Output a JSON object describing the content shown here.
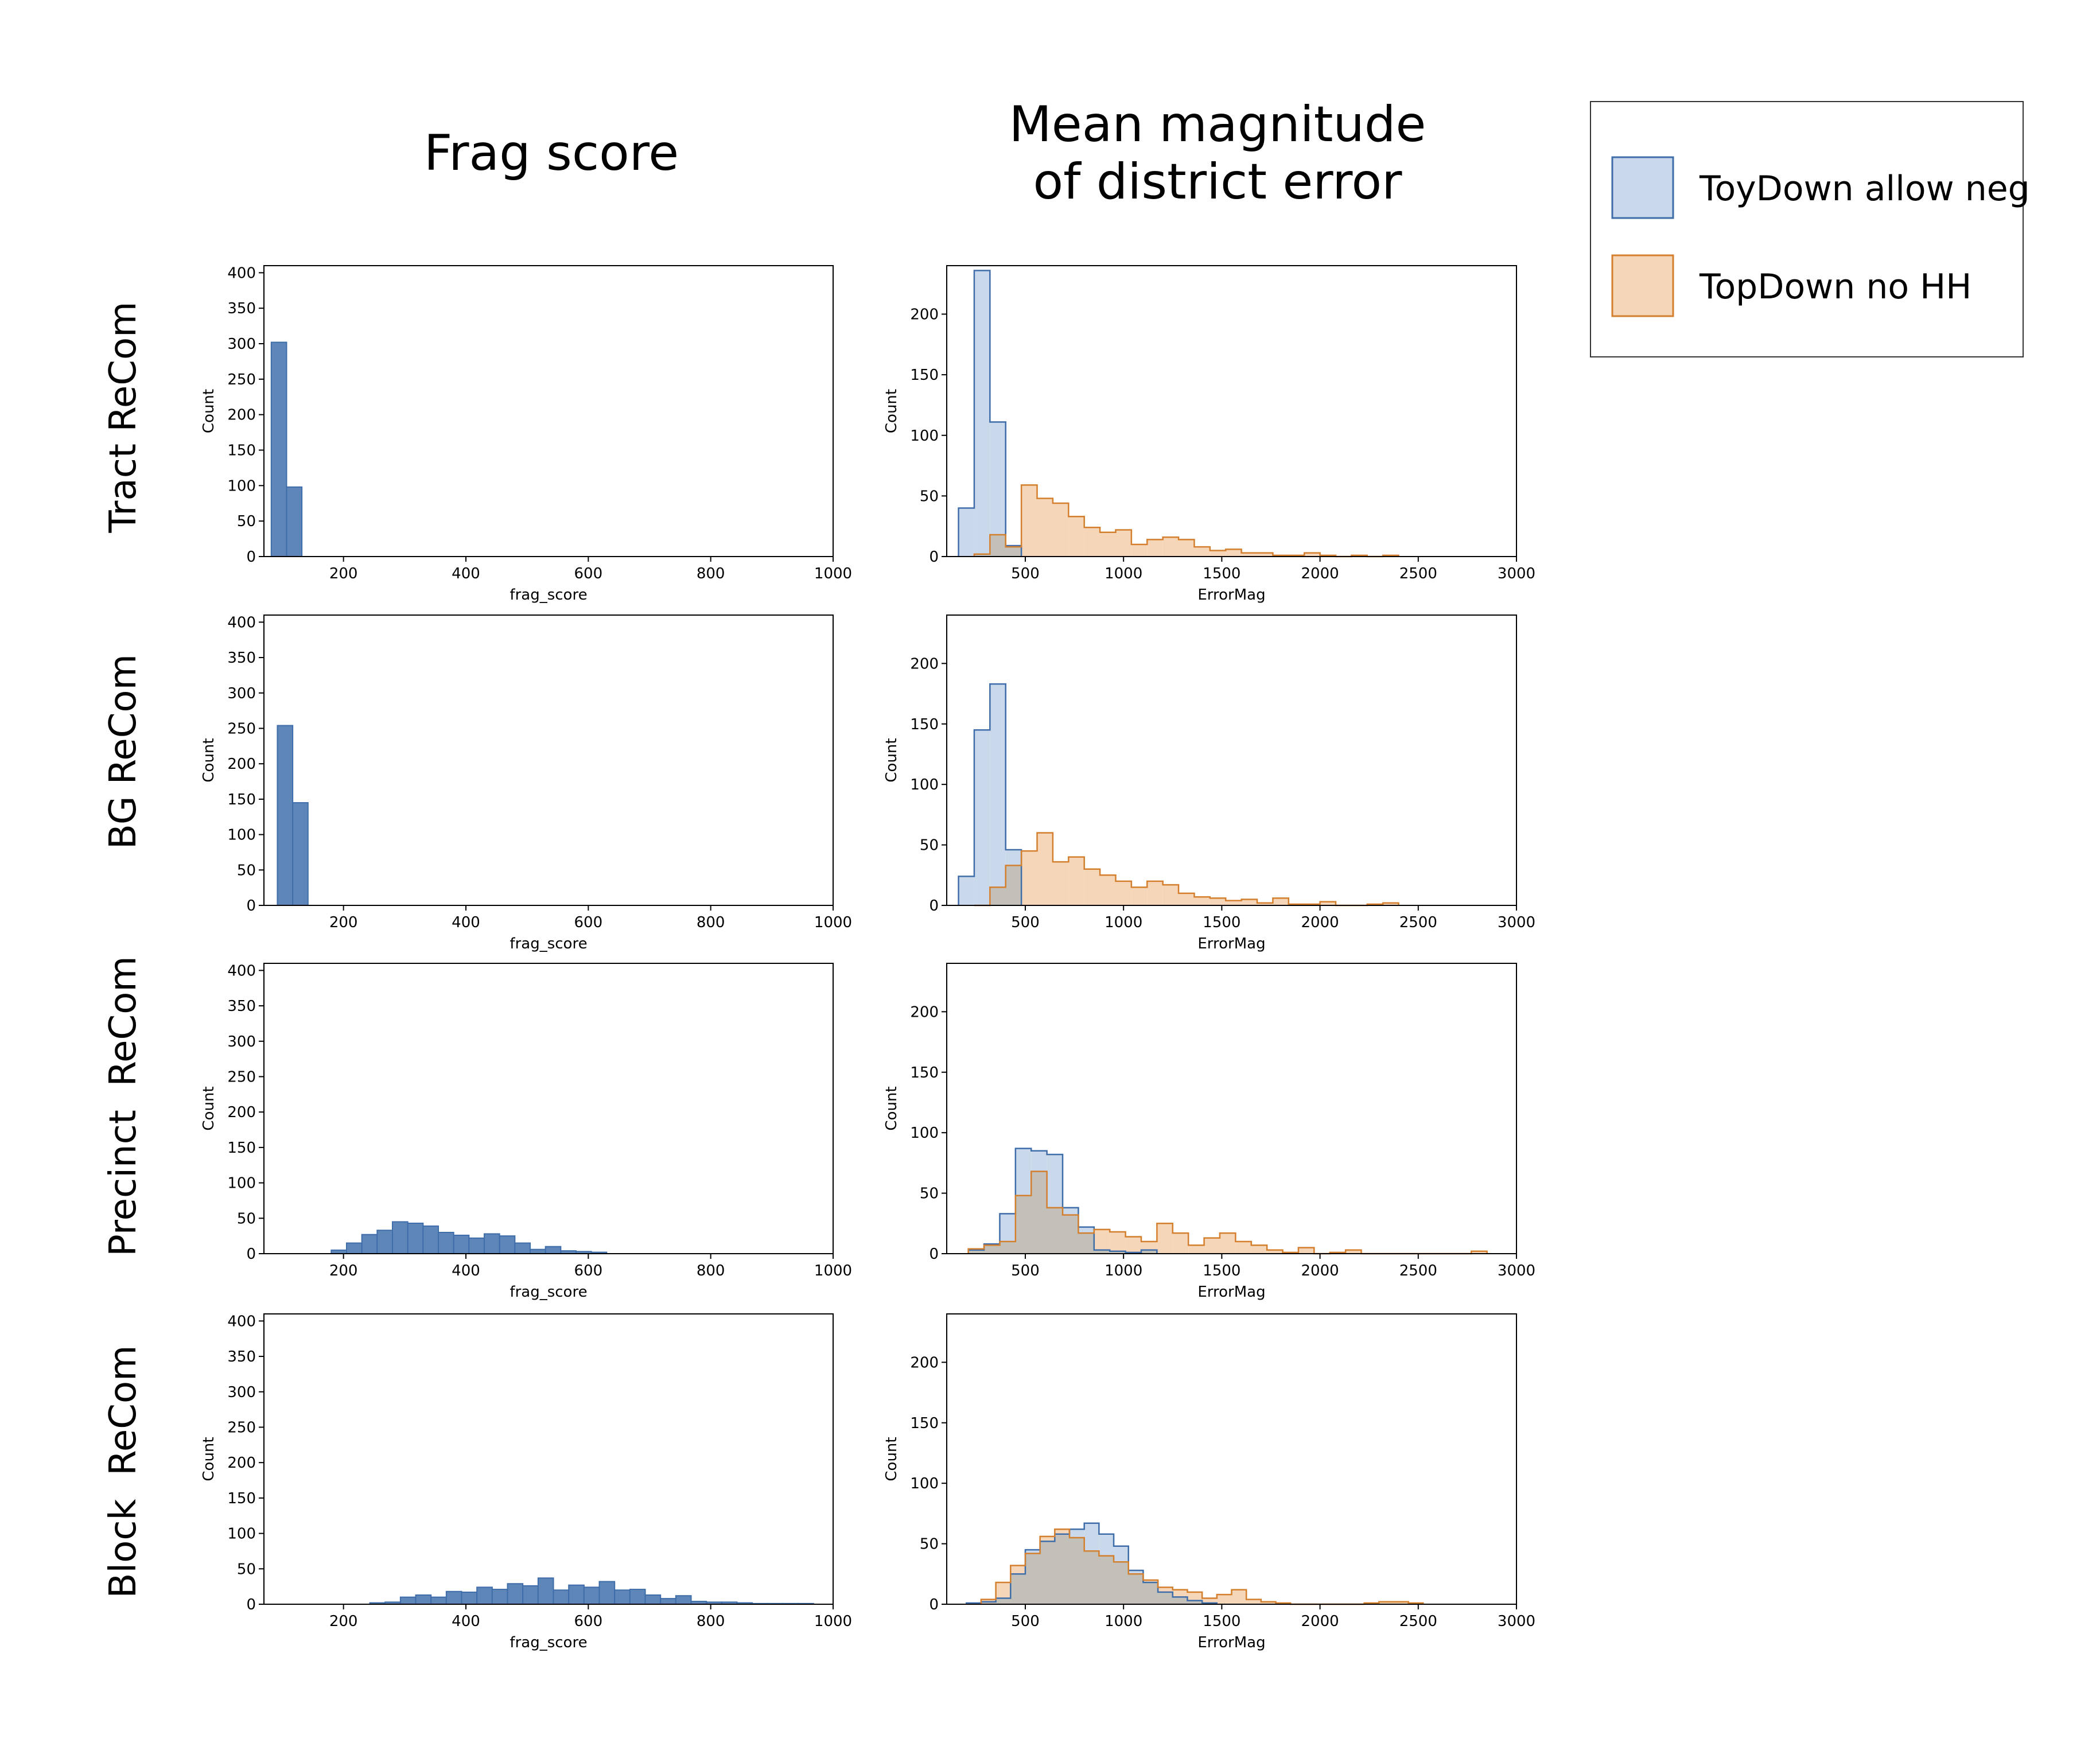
{
  "column_titles": {
    "frag": "Frag score",
    "err_line1": "Mean magnitude",
    "err_line2": "of district error"
  },
  "row_titles": [
    "Tract ReCom",
    "BG ReCom",
    "Precinct  ReCom",
    "Block  ReCom"
  ],
  "legend": {
    "items": [
      {
        "label": "ToyDown allow neg",
        "fill": "#c9d8ea",
        "stroke": "#3e6daa"
      },
      {
        "label": "TopDown no HH",
        "fill": "#f6d6b8",
        "stroke": "#d47f2e"
      }
    ]
  },
  "colors": {
    "frag_fill": "#5f86b8",
    "frag_stroke": "#3e6daa",
    "blue_fill": "#c9d8ea",
    "blue_stroke": "#3e6daa",
    "orange_fill": "#f6d6b8",
    "orange_stroke": "#d47f2e",
    "overlap_fill": "#c2c0b8"
  },
  "chart_data": [
    {
      "type": "bar",
      "row": 0,
      "panel": "frag",
      "xlabel": "frag_score",
      "ylabel": "Count",
      "xlim": [
        70,
        1000
      ],
      "ylim": [
        0,
        410
      ],
      "xticks": [
        200,
        400,
        600,
        800,
        1000
      ],
      "yticks": [
        0,
        50,
        100,
        150,
        200,
        250,
        300,
        350,
        400
      ],
      "bins": [
        [
          82,
          107,
          302
        ],
        [
          107,
          132,
          98
        ]
      ]
    },
    {
      "type": "bar",
      "row": 0,
      "panel": "err",
      "xlabel": "ErrorMag",
      "ylabel": "Count",
      "xlim": [
        100,
        3000
      ],
      "ylim": [
        0,
        240
      ],
      "xticks": [
        500,
        1000,
        1500,
        2000,
        2500,
        3000
      ],
      "yticks": [
        0,
        50,
        100,
        150,
        200
      ],
      "series": [
        {
          "name": "ToyDown allow neg",
          "start": 160,
          "width": 80,
          "counts": [
            40,
            236,
            111,
            9
          ]
        },
        {
          "name": "TopDown no HH",
          "start": 240,
          "width": 80,
          "counts": [
            2,
            18,
            8,
            59,
            48,
            44,
            33,
            24,
            20,
            22,
            10,
            14,
            16,
            14,
            8,
            5,
            6,
            3,
            3,
            1,
            1,
            3,
            1,
            0,
            1,
            0,
            1
          ]
        }
      ]
    },
    {
      "type": "bar",
      "row": 1,
      "panel": "frag",
      "xlabel": "frag_score",
      "ylabel": "Count",
      "xlim": [
        70,
        1000
      ],
      "ylim": [
        0,
        410
      ],
      "xticks": [
        200,
        400,
        600,
        800,
        1000
      ],
      "yticks": [
        0,
        50,
        100,
        150,
        200,
        250,
        300,
        350,
        400
      ],
      "bins": [
        [
          92,
          117,
          254
        ],
        [
          117,
          142,
          145
        ]
      ]
    },
    {
      "type": "bar",
      "row": 1,
      "panel": "err",
      "xlabel": "ErrorMag",
      "ylabel": "Count",
      "xlim": [
        100,
        3000
      ],
      "ylim": [
        0,
        240
      ],
      "xticks": [
        500,
        1000,
        1500,
        2000,
        2500,
        3000
      ],
      "yticks": [
        0,
        50,
        100,
        150,
        200
      ],
      "series": [
        {
          "name": "ToyDown allow neg",
          "start": 160,
          "width": 80,
          "counts": [
            24,
            145,
            183,
            46
          ]
        },
        {
          "name": "TopDown no HH",
          "start": 240,
          "width": 80,
          "counts": [
            0,
            15,
            33,
            45,
            60,
            36,
            40,
            30,
            25,
            20,
            15,
            20,
            17,
            10,
            7,
            6,
            4,
            5,
            2,
            6,
            1,
            1,
            3,
            0,
            0,
            1,
            2
          ]
        }
      ]
    },
    {
      "type": "bar",
      "row": 2,
      "panel": "frag",
      "xlabel": "frag_score",
      "ylabel": "Count",
      "xlim": [
        70,
        1000
      ],
      "ylim": [
        0,
        410
      ],
      "xticks": [
        200,
        400,
        600,
        800,
        1000
      ],
      "yticks": [
        0,
        50,
        100,
        150,
        200,
        250,
        300,
        350,
        400
      ],
      "bins": [
        [
          180,
          205,
          5
        ],
        [
          205,
          230,
          15
        ],
        [
          230,
          255,
          27
        ],
        [
          255,
          280,
          33
        ],
        [
          280,
          305,
          45
        ],
        [
          305,
          330,
          43
        ],
        [
          330,
          355,
          39
        ],
        [
          355,
          380,
          30
        ],
        [
          380,
          405,
          26
        ],
        [
          405,
          430,
          22
        ],
        [
          430,
          455,
          28
        ],
        [
          455,
          480,
          25
        ],
        [
          480,
          505,
          15
        ],
        [
          505,
          530,
          6
        ],
        [
          530,
          555,
          10
        ],
        [
          555,
          580,
          4
        ],
        [
          580,
          605,
          3
        ],
        [
          605,
          630,
          2
        ]
      ]
    },
    {
      "type": "bar",
      "row": 2,
      "panel": "err",
      "xlabel": "ErrorMag",
      "ylabel": "Count",
      "xlim": [
        100,
        3000
      ],
      "ylim": [
        0,
        240
      ],
      "xticks": [
        500,
        1000,
        1500,
        2000,
        2500,
        3000
      ],
      "yticks": [
        0,
        50,
        100,
        150,
        200
      ],
      "series": [
        {
          "name": "ToyDown allow neg",
          "start": 210,
          "width": 80,
          "counts": [
            3,
            8,
            33,
            87,
            85,
            82,
            38,
            22,
            3,
            2,
            1,
            3
          ]
        },
        {
          "name": "TopDown no HH",
          "start": 210,
          "width": 80,
          "counts": [
            4,
            7,
            10,
            48,
            68,
            38,
            32,
            17,
            20,
            18,
            14,
            10,
            25,
            17,
            7,
            13,
            17,
            10,
            7,
            3,
            1,
            5,
            0,
            1,
            3,
            0,
            0,
            0,
            0,
            0,
            0,
            0,
            2
          ]
        }
      ]
    },
    {
      "type": "bar",
      "row": 3,
      "panel": "frag",
      "xlabel": "frag_score",
      "ylabel": "Count",
      "xlim": [
        70,
        1000
      ],
      "ylim": [
        0,
        410
      ],
      "xticks": [
        200,
        400,
        600,
        800,
        1000
      ],
      "yticks": [
        0,
        50,
        100,
        150,
        200,
        250,
        300,
        350,
        400
      ],
      "bins": [
        [
          243,
          268,
          2
        ],
        [
          268,
          293,
          3
        ],
        [
          293,
          318,
          10
        ],
        [
          318,
          343,
          13
        ],
        [
          343,
          368,
          10
        ],
        [
          368,
          393,
          18
        ],
        [
          393,
          418,
          17
        ],
        [
          418,
          443,
          24
        ],
        [
          443,
          468,
          21
        ],
        [
          468,
          493,
          29
        ],
        [
          493,
          518,
          26
        ],
        [
          518,
          543,
          37
        ],
        [
          543,
          568,
          20
        ],
        [
          568,
          593,
          27
        ],
        [
          593,
          618,
          24
        ],
        [
          618,
          643,
          32
        ],
        [
          643,
          668,
          20
        ],
        [
          668,
          693,
          21
        ],
        [
          693,
          718,
          13
        ],
        [
          718,
          743,
          8
        ],
        [
          743,
          768,
          12
        ],
        [
          768,
          793,
          4
        ],
        [
          793,
          818,
          3
        ],
        [
          818,
          843,
          3
        ],
        [
          843,
          868,
          2
        ],
        [
          868,
          893,
          1
        ],
        [
          893,
          918,
          1
        ],
        [
          918,
          943,
          1
        ],
        [
          943,
          968,
          1
        ]
      ]
    },
    {
      "type": "bar",
      "row": 3,
      "panel": "err",
      "xlabel": "ErrorMag",
      "ylabel": "Count",
      "xlim": [
        100,
        3000
      ],
      "ylim": [
        0,
        240
      ],
      "xticks": [
        500,
        1000,
        1500,
        2000,
        2500,
        3000
      ],
      "yticks": [
        0,
        50,
        100,
        150,
        200
      ],
      "series": [
        {
          "name": "ToyDown allow neg",
          "start": 200,
          "width": 75,
          "counts": [
            1,
            2,
            5,
            25,
            45,
            52,
            58,
            62,
            67,
            58,
            48,
            28,
            18,
            10,
            6,
            3,
            1
          ]
        },
        {
          "name": "TopDown no HH",
          "start": 275,
          "width": 75,
          "counts": [
            4,
            18,
            32,
            42,
            56,
            62,
            55,
            44,
            40,
            35,
            25,
            20,
            14,
            12,
            10,
            5,
            8,
            12,
            4,
            2,
            1,
            0,
            0,
            0,
            0,
            0,
            1,
            2,
            2,
            1
          ]
        }
      ]
    }
  ]
}
